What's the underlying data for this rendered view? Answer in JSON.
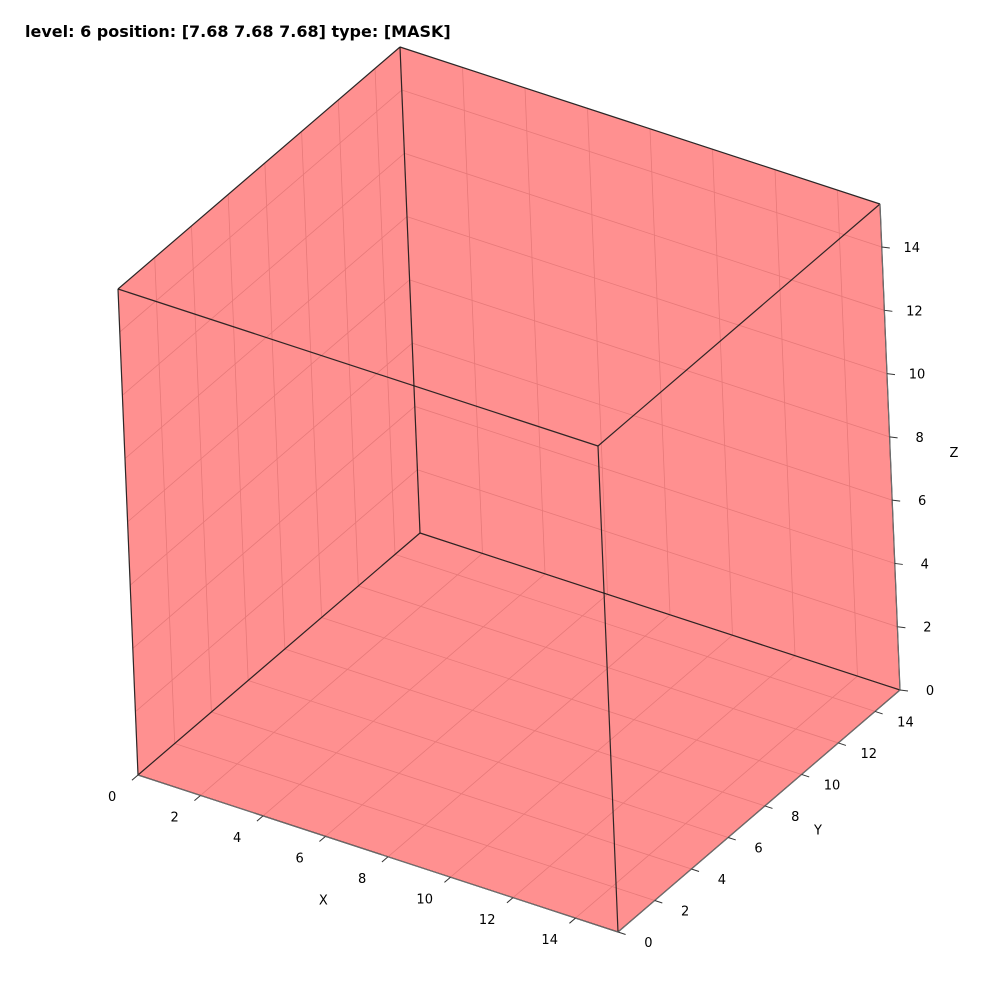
{
  "title": "level: 6 position: [7.68 7.68 7.68] type: [MASK]",
  "chart_data": {
    "type": "3d-voxel",
    "title": "level: 6 position: [7.68 7.68 7.68] type: [MASK]",
    "xlabel": "X",
    "ylabel": "Y",
    "zlabel": "Z",
    "xlim": [
      0,
      15.36
    ],
    "ylim": [
      0,
      15.36
    ],
    "zlim": [
      0,
      15.36
    ],
    "xticks": [
      0,
      2,
      4,
      6,
      8,
      10,
      12,
      14
    ],
    "yticks": [
      0,
      2,
      4,
      6,
      8,
      10,
      12,
      14
    ],
    "zticks": [
      0,
      2,
      4,
      6,
      8,
      10,
      12,
      14
    ],
    "grid": true,
    "voxel": {
      "center": [
        7.68,
        7.68,
        7.68
      ],
      "size": 15.36,
      "type": "MASK",
      "color": "#ff0000",
      "alpha": 0.75
    }
  }
}
